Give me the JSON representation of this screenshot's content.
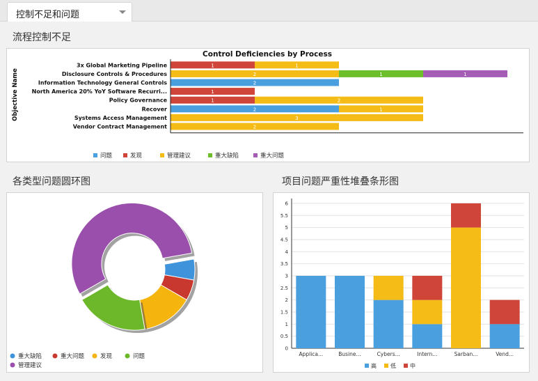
{
  "tab": {
    "label": "控制不足和问题"
  },
  "sections": {
    "process": "流程控制不足",
    "donut": "各类型问题圆环图",
    "stacked": "项目问题严重性堆叠条形图"
  },
  "chart_data": [
    {
      "type": "bar",
      "orientation": "horizontal",
      "stacked": true,
      "title": "Control Deficiencies by Process",
      "ylabel": "Objective Name",
      "categories": [
        "3x Global Marketing Pipeline",
        "Disclosure Controls & Procedures",
        "Information Technology General Controls",
        "North America 20% YoY Software Recurri...",
        "Policy Governance",
        "Recover",
        "Systems Access Management",
        "Vendor Contract Management"
      ],
      "series": [
        {
          "name": "问题",
          "color": "#4a9fdf",
          "values": [
            0,
            0,
            2,
            0,
            0,
            2,
            0,
            0
          ]
        },
        {
          "name": "发现",
          "color": "#d0453a",
          "values": [
            1,
            0,
            0,
            1,
            1,
            0,
            0,
            0
          ]
        },
        {
          "name": "管理建议",
          "color": "#f5bb16",
          "values": [
            1,
            2,
            0,
            0,
            2,
            1,
            3,
            2
          ]
        },
        {
          "name": "重大缺陷",
          "color": "#6cbf2a",
          "values": [
            0,
            1,
            0,
            0,
            0,
            0,
            0,
            0
          ]
        },
        {
          "name": "重大问题",
          "color": "#a45cb5",
          "values": [
            0,
            1,
            0,
            0,
            0,
            0,
            0,
            0
          ]
        }
      ],
      "xlim": [
        0,
        4.3
      ],
      "legend": "bottom"
    },
    {
      "type": "pie",
      "donut": true,
      "slices": [
        {
          "name": "重大缺陷",
          "color": "#3e93db",
          "value": 2
        },
        {
          "name": "重大问题",
          "color": "#c9382e",
          "value": 2
        },
        {
          "name": "发现",
          "color": "#f5b50e",
          "value": 5
        },
        {
          "name": "问题",
          "color": "#6db82a",
          "value": 7
        },
        {
          "name": "管理建议",
          "color": "#9b4fac",
          "value": 20
        }
      ],
      "legend": "bottom"
    },
    {
      "type": "bar",
      "stacked": true,
      "categories": [
        "Applica...",
        "Busine...",
        "Cybers...",
        "Intern...",
        "Sarban...",
        "Vend..."
      ],
      "series": [
        {
          "name": "高",
          "color": "#4a9fdf",
          "values": [
            3,
            3,
            2,
            1,
            0,
            1
          ]
        },
        {
          "name": "低",
          "color": "#f5bb16",
          "values": [
            0,
            0,
            1,
            1,
            5,
            0
          ]
        },
        {
          "name": "中",
          "color": "#d0453a",
          "values": [
            0,
            0,
            0,
            1,
            1,
            1
          ]
        }
      ],
      "ylim": [
        0,
        6.2
      ],
      "yticks": [
        "0",
        "0.5",
        "1",
        "1.5",
        "2",
        "2.5",
        "3",
        "3.5",
        "4",
        "4.5",
        "5",
        "5.5",
        "6"
      ],
      "grid": true,
      "legend": "bottom"
    }
  ]
}
